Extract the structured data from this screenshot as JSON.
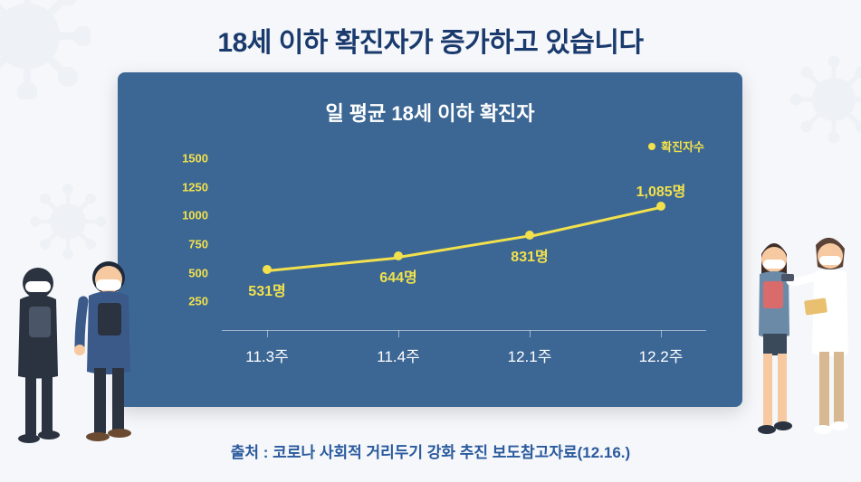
{
  "main_title": "18세 이하 확진자가 증가하고 있습니다",
  "chart": {
    "title": "일 평균 18세 이하 확진자",
    "legend_label": "확진자수",
    "type": "line",
    "background_color": "#3c6795",
    "series_color": "#f2e14c",
    "tick_label_color": "#f2e14c",
    "x_label_color": "#ffffff",
    "ylim": [
      0,
      1500
    ],
    "ytick_step": 250,
    "yticks": [
      "250",
      "500",
      "750",
      "1000",
      "1250",
      "1500"
    ],
    "categories": [
      "11.3주",
      "11.4주",
      "12.1주",
      "12.2주"
    ],
    "values": [
      531,
      644,
      831,
      1085
    ],
    "value_labels": [
      "531명",
      "644명",
      "831명",
      "1,085명"
    ],
    "label_positions": [
      "below",
      "below",
      "below",
      "above"
    ],
    "marker_size": 10,
    "line_width": 2.5,
    "title_fontsize": 22,
    "category_fontsize": 17,
    "value_label_fontsize": 16
  },
  "source": "출처 : 코로나 사회적 거리두기 강화 추진 보도참고자료(12.16.)",
  "colors": {
    "page_bg": "#f5f7fa",
    "title_color": "#1a3a6e",
    "source_color": "#2a5a9e",
    "virus_color": "#d7dce3"
  }
}
